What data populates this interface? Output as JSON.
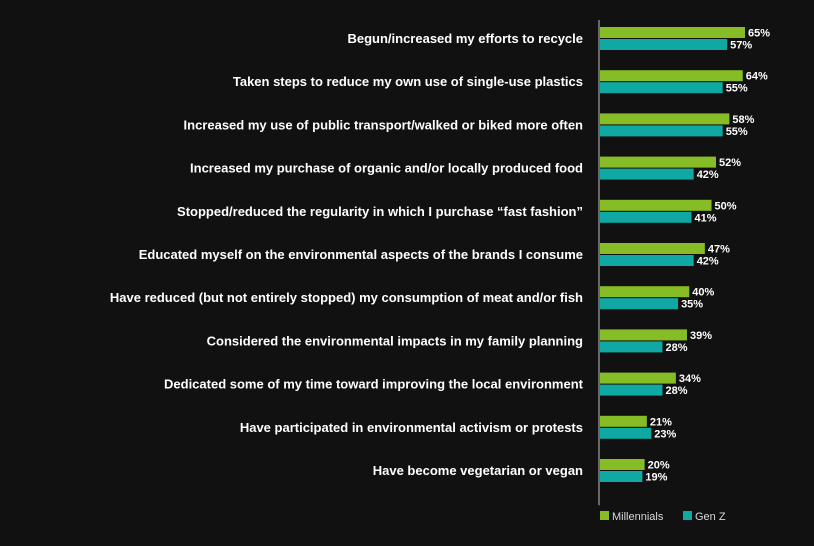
{
  "chart_data": {
    "type": "bar",
    "orientation": "horizontal",
    "categories": [
      "Begun/increased my efforts to recycle",
      "Taken steps to reduce my own use of single-use plastics",
      "Increased my use of public transport/walked or biked more often",
      "Increased my purchase of organic and/or locally produced food",
      "Stopped/reduced the regularity in which I purchase “fast fashion”",
      "Educated myself on the environmental aspects of the brands I consume",
      "Have reduced (but not entirely stopped) my consumption of meat and/or fish",
      "Considered the environmental impacts in my family planning",
      "Dedicated some of my time toward improving the local environment",
      "Have participated in environmental activism or protests",
      "Have become vegetarian or vegan"
    ],
    "series": [
      {
        "name": "Millennials",
        "color": "#86bc25",
        "values": [
          65,
          64,
          58,
          52,
          50,
          47,
          40,
          39,
          34,
          21,
          20
        ],
        "labels": [
          "65%",
          "64%",
          "58%",
          "52%",
          "50%",
          "47%",
          "40%",
          "39%",
          "34%",
          "21%",
          "20%"
        ]
      },
      {
        "name": "Gen Z",
        "color": "#0fa8a2",
        "values": [
          57,
          55,
          55,
          42,
          41,
          42,
          35,
          28,
          28,
          23,
          19
        ],
        "labels": [
          "57%",
          "55%",
          "55%",
          "42%",
          "41%",
          "42%",
          "35%",
          "28%",
          "28%",
          "23%",
          "19%"
        ]
      }
    ],
    "xlim": [
      0,
      100
    ],
    "grid": false,
    "legend": "bottom-right",
    "title": "",
    "xlabel": "",
    "ylabel": ""
  }
}
